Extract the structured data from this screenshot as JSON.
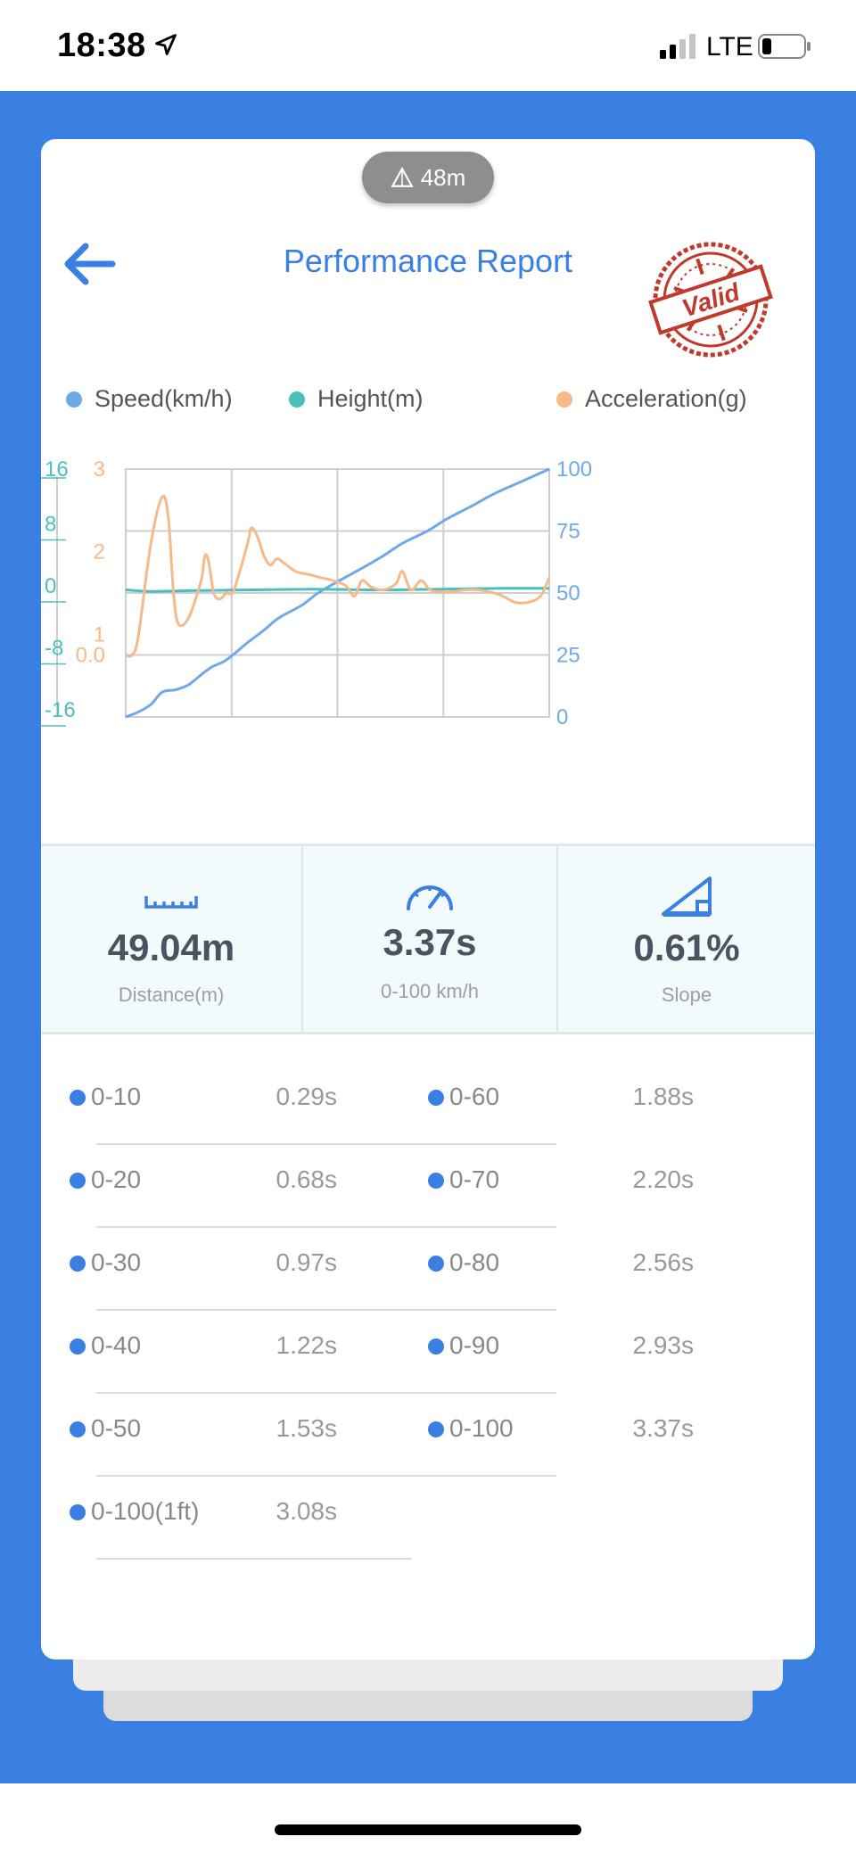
{
  "status": {
    "time": "18:38",
    "network": "LTE",
    "signal_bars": 2
  },
  "header": {
    "height_badge": "48m",
    "title": "Performance Report",
    "stamp_text": "Valid"
  },
  "legend": [
    {
      "label": "Speed(km/h)",
      "color": "#6fa9ea"
    },
    {
      "label": "Height(m)",
      "color": "#4bbfbe"
    },
    {
      "label": "Acceleration(g)",
      "color": "#f5b98a"
    }
  ],
  "chart_data": {
    "type": "line",
    "x_range": [
      0,
      3.37
    ],
    "axes": {
      "height_ticks": [
        "16",
        "8",
        "0",
        "-8",
        "-16"
      ],
      "acceleration_ticks": [
        "3",
        "2",
        "1",
        "0.0"
      ],
      "speed_ticks": [
        "100",
        "75",
        "50",
        "25",
        "0"
      ]
    },
    "ylim_speed": [
      0,
      100
    ],
    "ylim_height": [
      -16,
      16
    ],
    "ylim_acceleration": [
      0,
      3
    ],
    "grid": true,
    "series": [
      {
        "name": "Speed(km/h)",
        "color": "#6fa9ea",
        "axis": "speed",
        "points": [
          [
            0,
            0
          ],
          [
            0.1,
            2
          ],
          [
            0.2,
            5
          ],
          [
            0.29,
            10
          ],
          [
            0.4,
            11
          ],
          [
            0.5,
            13
          ],
          [
            0.6,
            17
          ],
          [
            0.68,
            20
          ],
          [
            0.8,
            23
          ],
          [
            0.97,
            30
          ],
          [
            1.1,
            35
          ],
          [
            1.22,
            40
          ],
          [
            1.4,
            45
          ],
          [
            1.53,
            50
          ],
          [
            1.7,
            55
          ],
          [
            1.88,
            60
          ],
          [
            2.05,
            65
          ],
          [
            2.2,
            70
          ],
          [
            2.4,
            75
          ],
          [
            2.56,
            80
          ],
          [
            2.75,
            85
          ],
          [
            2.93,
            90
          ],
          [
            3.15,
            95
          ],
          [
            3.37,
            100
          ]
        ]
      },
      {
        "name": "Height(m)",
        "color": "#4bbfbe",
        "axis": "height",
        "points": [
          [
            0,
            0.4
          ],
          [
            0.2,
            0.2
          ],
          [
            0.5,
            0.3
          ],
          [
            1.0,
            0.4
          ],
          [
            1.5,
            0.5
          ],
          [
            2.0,
            0.4
          ],
          [
            2.5,
            0.5
          ],
          [
            3.0,
            0.6
          ],
          [
            3.37,
            0.6
          ]
        ]
      },
      {
        "name": "Acceleration(g)",
        "color": "#f5b98a",
        "axis": "acceleration",
        "points": [
          [
            0,
            0.0
          ],
          [
            0.05,
            0.0
          ],
          [
            0.1,
            0.3
          ],
          [
            0.2,
            1.8
          ],
          [
            0.29,
            2.55
          ],
          [
            0.34,
            2.2
          ],
          [
            0.38,
            1.0
          ],
          [
            0.42,
            0.5
          ],
          [
            0.5,
            0.6
          ],
          [
            0.6,
            1.2
          ],
          [
            0.63,
            1.6
          ],
          [
            0.66,
            1.5
          ],
          [
            0.7,
            1.0
          ],
          [
            0.75,
            0.9
          ],
          [
            0.8,
            1.0
          ],
          [
            0.85,
            1.0
          ],
          [
            0.9,
            1.3
          ],
          [
            0.97,
            1.8
          ],
          [
            1.0,
            2.05
          ],
          [
            1.05,
            1.9
          ],
          [
            1.1,
            1.6
          ],
          [
            1.15,
            1.45
          ],
          [
            1.2,
            1.55
          ],
          [
            1.25,
            1.5
          ],
          [
            1.35,
            1.35
          ],
          [
            1.45,
            1.3
          ],
          [
            1.55,
            1.25
          ],
          [
            1.65,
            1.2
          ],
          [
            1.75,
            1.12
          ],
          [
            1.82,
            0.95
          ],
          [
            1.88,
            1.2
          ],
          [
            1.95,
            1.1
          ],
          [
            2.05,
            1.05
          ],
          [
            2.15,
            1.15
          ],
          [
            2.2,
            1.35
          ],
          [
            2.27,
            1.05
          ],
          [
            2.35,
            1.2
          ],
          [
            2.42,
            1.05
          ],
          [
            2.5,
            1.02
          ],
          [
            2.6,
            1.02
          ],
          [
            2.7,
            1.05
          ],
          [
            2.8,
            1.05
          ],
          [
            2.93,
            1.0
          ],
          [
            3.0,
            0.95
          ],
          [
            3.1,
            0.85
          ],
          [
            3.2,
            0.85
          ],
          [
            3.3,
            0.95
          ],
          [
            3.37,
            1.25
          ]
        ]
      }
    ]
  },
  "stats": [
    {
      "icon": "ruler-icon",
      "value": "49.04m",
      "label": "Distance(m)"
    },
    {
      "icon": "speedometer-icon",
      "value": "3.37s",
      "label": "0-100 km/h"
    },
    {
      "icon": "slope-icon",
      "value": "0.61%",
      "label": "Slope"
    }
  ],
  "splits_left": [
    {
      "label": "0-10",
      "time": "0.29s"
    },
    {
      "label": "0-20",
      "time": "0.68s"
    },
    {
      "label": "0-30",
      "time": "0.97s"
    },
    {
      "label": "0-40",
      "time": "1.22s"
    },
    {
      "label": "0-50",
      "time": "1.53s"
    },
    {
      "label": "0-100(1ft)",
      "time": "3.08s"
    }
  ],
  "splits_right": [
    {
      "label": "0-60",
      "time": "1.88s"
    },
    {
      "label": "0-70",
      "time": "2.20s"
    },
    {
      "label": "0-80",
      "time": "2.56s"
    },
    {
      "label": "0-90",
      "time": "2.93s"
    },
    {
      "label": "0-100",
      "time": "3.37s"
    }
  ],
  "colors": {
    "accent": "#3a80e3",
    "stamp": "#c0392b"
  }
}
